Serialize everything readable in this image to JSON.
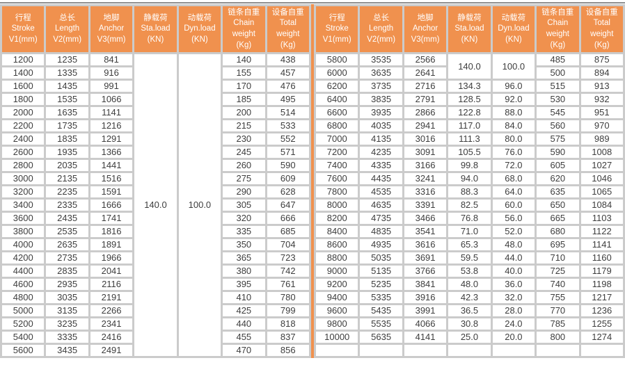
{
  "colors": {
    "accent_orange": "#f0914e",
    "grid_gap_gray": "#cbcbcb",
    "top_rule_gray": "#8f8f8f",
    "header_text": "#ffffff",
    "cell_text": "#3d3d3d"
  },
  "columns": [
    {
      "id": "stroke",
      "lines": [
        "行程",
        "Stroke",
        "V1(mm)"
      ]
    },
    {
      "id": "length",
      "lines": [
        "总长",
        "Length",
        "V2(mm)"
      ]
    },
    {
      "id": "anchor",
      "lines": [
        "地脚",
        "Anchor",
        "V3(mm)"
      ]
    },
    {
      "id": "sta-load",
      "lines": [
        "静载荷",
        "Sta.load",
        "(KN)"
      ]
    },
    {
      "id": "dyn-load",
      "lines": [
        "动载荷",
        "Dyn.load",
        "(KN)"
      ]
    },
    {
      "id": "chain-weight",
      "lines": [
        "链条自重",
        "Chain",
        "weight",
        "(Kg)"
      ]
    },
    {
      "id": "total-weight",
      "lines": [
        "设备自重",
        "Total",
        "weight",
        "(Kg)"
      ]
    }
  ],
  "left_table": {
    "merges": [
      {
        "row": 0,
        "col": 3,
        "rowspan": 23,
        "value": "140.0"
      },
      {
        "row": 0,
        "col": 4,
        "rowspan": 23,
        "value": "100.0"
      }
    ],
    "rows": [
      [
        "1200",
        "1235",
        "841",
        "",
        "",
        "140",
        "438"
      ],
      [
        "1400",
        "1335",
        "916",
        "",
        "",
        "155",
        "457"
      ],
      [
        "1600",
        "1435",
        "991",
        "",
        "",
        "170",
        "476"
      ],
      [
        "1800",
        "1535",
        "1066",
        "",
        "",
        "185",
        "495"
      ],
      [
        "2000",
        "1635",
        "1141",
        "",
        "",
        "200",
        "514"
      ],
      [
        "2200",
        "1735",
        "1216",
        "",
        "",
        "215",
        "533"
      ],
      [
        "2400",
        "1835",
        "1291",
        "",
        "",
        "230",
        "552"
      ],
      [
        "2600",
        "1935",
        "1366",
        "",
        "",
        "245",
        "571"
      ],
      [
        "2800",
        "2035",
        "1441",
        "",
        "",
        "260",
        "590"
      ],
      [
        "3000",
        "2135",
        "1516",
        "",
        "",
        "275",
        "609"
      ],
      [
        "3200",
        "2235",
        "1591",
        "",
        "",
        "290",
        "628"
      ],
      [
        "3400",
        "2335",
        "1666",
        "",
        "",
        "305",
        "647"
      ],
      [
        "3600",
        "2435",
        "1741",
        "",
        "",
        "320",
        "666"
      ],
      [
        "3800",
        "2535",
        "1816",
        "",
        "",
        "335",
        "685"
      ],
      [
        "4000",
        "2635",
        "1891",
        "",
        "",
        "350",
        "704"
      ],
      [
        "4200",
        "2735",
        "1966",
        "",
        "",
        "365",
        "723"
      ],
      [
        "4400",
        "2835",
        "2041",
        "",
        "",
        "380",
        "742"
      ],
      [
        "4600",
        "2935",
        "2116",
        "",
        "",
        "395",
        "761"
      ],
      [
        "4800",
        "3035",
        "2191",
        "",
        "",
        "410",
        "780"
      ],
      [
        "5000",
        "3135",
        "2266",
        "",
        "",
        "425",
        "799"
      ],
      [
        "5200",
        "3235",
        "2341",
        "",
        "",
        "440",
        "818"
      ],
      [
        "5400",
        "3335",
        "2416",
        "",
        "",
        "455",
        "837"
      ],
      [
        "5600",
        "3435",
        "2491",
        "",
        "",
        "470",
        "856"
      ]
    ]
  },
  "right_table": {
    "merges": [
      {
        "row": 0,
        "col": 3,
        "rowspan": 2,
        "value": "140.0"
      },
      {
        "row": 0,
        "col": 4,
        "rowspan": 2,
        "value": "100.0"
      }
    ],
    "rows": [
      [
        "5800",
        "3535",
        "2566",
        "",
        "",
        "485",
        "875"
      ],
      [
        "6000",
        "3635",
        "2641",
        "",
        "",
        "500",
        "894"
      ],
      [
        "6200",
        "3735",
        "2716",
        "134.3",
        "96.0",
        "515",
        "913"
      ],
      [
        "6400",
        "3835",
        "2791",
        "128.5",
        "92.0",
        "530",
        "932"
      ],
      [
        "6600",
        "3935",
        "2866",
        "122.8",
        "88.0",
        "545",
        "951"
      ],
      [
        "6800",
        "4035",
        "2941",
        "117.0",
        "84.0",
        "560",
        "970"
      ],
      [
        "7000",
        "4135",
        "3016",
        "111.3",
        "80.0",
        "575",
        "989"
      ],
      [
        "7200",
        "4235",
        "3091",
        "105.5",
        "76.0",
        "590",
        "1008"
      ],
      [
        "7400",
        "4335",
        "3166",
        "99.8",
        "72.0",
        "605",
        "1027"
      ],
      [
        "7600",
        "4435",
        "3241",
        "94.0",
        "68.0",
        "620",
        "1046"
      ],
      [
        "7800",
        "4535",
        "3316",
        "88.3",
        "64.0",
        "635",
        "1065"
      ],
      [
        "8000",
        "4635",
        "3391",
        "82.5",
        "60.0",
        "650",
        "1084"
      ],
      [
        "8200",
        "4735",
        "3466",
        "76.8",
        "56.0",
        "665",
        "1103"
      ],
      [
        "8400",
        "4835",
        "3541",
        "71.0",
        "52.0",
        "680",
        "1122"
      ],
      [
        "8600",
        "4935",
        "3616",
        "65.3",
        "48.0",
        "695",
        "1141"
      ],
      [
        "8800",
        "5035",
        "3691",
        "59.5",
        "44.0",
        "710",
        "1160"
      ],
      [
        "9000",
        "5135",
        "3766",
        "53.8",
        "40.0",
        "725",
        "1179"
      ],
      [
        "9200",
        "5235",
        "3841",
        "48.0",
        "36.0",
        "740",
        "1198"
      ],
      [
        "9400",
        "5335",
        "3916",
        "42.3",
        "32.0",
        "755",
        "1217"
      ],
      [
        "9600",
        "5435",
        "3991",
        "36.5",
        "28.0",
        "770",
        "1236"
      ],
      [
        "9800",
        "5535",
        "4066",
        "30.8",
        "24.0",
        "785",
        "1255"
      ],
      [
        "10000",
        "5635",
        "4141",
        "25.0",
        "20.0",
        "800",
        "1274"
      ],
      [
        "",
        "",
        "",
        "",
        "",
        "",
        ""
      ]
    ]
  }
}
